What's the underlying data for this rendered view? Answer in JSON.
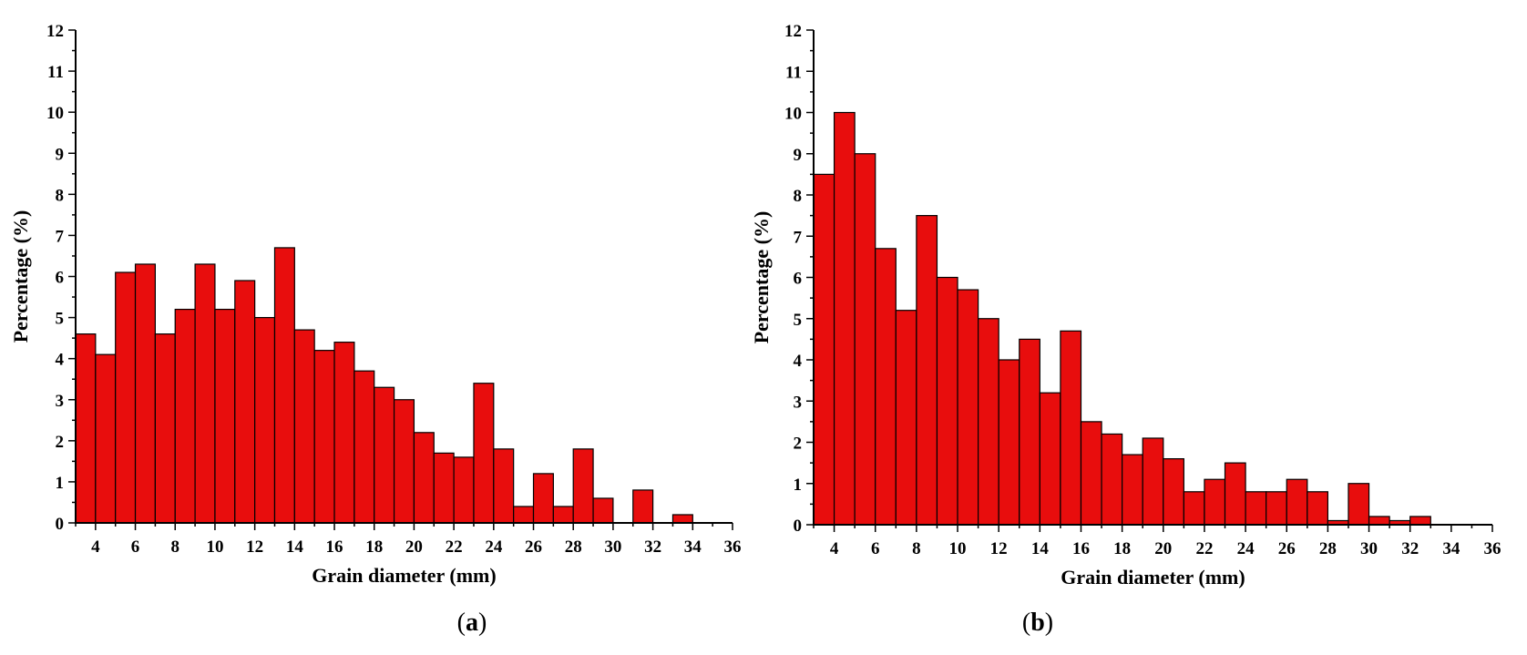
{
  "colors": {
    "bar": "#e80d0d",
    "axis": "#000000"
  },
  "chart_data": [
    {
      "type": "bar",
      "panel_label": "a",
      "xlabel": "Grain diameter (mm)",
      "ylabel": "Percentage (%)",
      "xlim": [
        3,
        36
      ],
      "ylim": [
        0,
        12
      ],
      "x_ticks": [
        4,
        6,
        8,
        10,
        12,
        14,
        16,
        18,
        20,
        22,
        24,
        26,
        28,
        30,
        32,
        34,
        36
      ],
      "y_ticks": [
        0,
        1,
        2,
        3,
        4,
        5,
        6,
        7,
        8,
        9,
        10,
        11,
        12
      ],
      "x": [
        3.5,
        4.5,
        5.5,
        6.5,
        7.5,
        8.5,
        9.5,
        10.5,
        11.5,
        12.5,
        13.5,
        14.5,
        15.5,
        16.5,
        17.5,
        18.5,
        19.5,
        20.5,
        21.5,
        22.5,
        23.5,
        24.5,
        25.5,
        26.5,
        27.5,
        28.5,
        29.5,
        30.5,
        31.5,
        32.5,
        33.5
      ],
      "values": [
        4.6,
        4.1,
        6.1,
        6.3,
        4.6,
        5.2,
        6.3,
        5.2,
        5.9,
        5.0,
        6.7,
        4.7,
        4.2,
        4.4,
        3.7,
        3.3,
        3.0,
        2.2,
        1.7,
        1.6,
        3.4,
        1.8,
        0.4,
        1.2,
        0.4,
        1.8,
        0.6,
        0.0,
        0.8,
        0.0,
        0.2
      ]
    },
    {
      "type": "bar",
      "panel_label": "b",
      "xlabel": "Grain diameter (mm)",
      "ylabel": "Percentage (%)",
      "xlim": [
        3,
        36
      ],
      "ylim": [
        0,
        12
      ],
      "x_ticks": [
        4,
        6,
        8,
        10,
        12,
        14,
        16,
        18,
        20,
        22,
        24,
        26,
        28,
        30,
        32,
        34,
        36
      ],
      "y_ticks": [
        0,
        1,
        2,
        3,
        4,
        5,
        6,
        7,
        8,
        9,
        10,
        11,
        12
      ],
      "x": [
        3.5,
        4.5,
        5.5,
        6.5,
        7.5,
        8.5,
        9.5,
        10.5,
        11.5,
        12.5,
        13.5,
        14.5,
        15.5,
        16.5,
        17.5,
        18.5,
        19.5,
        20.5,
        21.5,
        22.5,
        23.5,
        24.5,
        25.5,
        26.5,
        27.5,
        28.5,
        29.5,
        30.5,
        31.5,
        32.5
      ],
      "values": [
        8.5,
        10.0,
        9.0,
        6.7,
        5.2,
        7.5,
        6.0,
        5.7,
        5.0,
        4.0,
        4.5,
        3.2,
        4.7,
        2.5,
        2.2,
        1.7,
        2.1,
        1.6,
        0.8,
        1.1,
        1.5,
        0.8,
        0.8,
        1.1,
        0.8,
        0.1,
        1.0,
        0.2,
        0.1,
        0.2
      ]
    }
  ]
}
